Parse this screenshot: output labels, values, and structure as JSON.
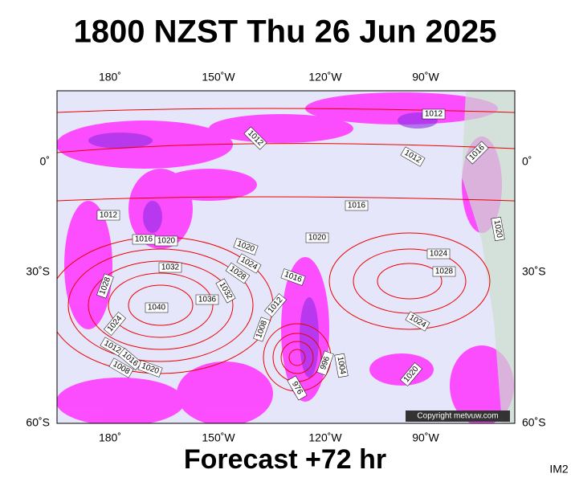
{
  "header": {
    "title": "1800 NZST Thu 26 Jun 2025"
  },
  "map": {
    "lon_labels": [
      "180˚",
      "150˚W",
      "120˚W",
      "90˚W"
    ],
    "lat_labels": [
      "0˚",
      "30˚S",
      "60˚S"
    ],
    "isobar_labels": [
      "1012",
      "1012",
      "1012",
      "1016",
      "1016",
      "1012",
      "1016",
      "1020",
      "1020",
      "1020",
      "1024",
      "1028",
      "1032",
      "1016",
      "1024",
      "1028",
      "1020",
      "1028",
      "1032",
      "1036",
      "1040",
      "1012",
      "1008",
      "1024",
      "1024",
      "1012",
      "1016",
      "1008",
      "1020",
      "1004",
      "1020",
      "996",
      "976"
    ],
    "copyright": "Copyright metvuw.com"
  },
  "footer": {
    "forecast": "Forecast +72 hr",
    "code": "IM2"
  }
}
